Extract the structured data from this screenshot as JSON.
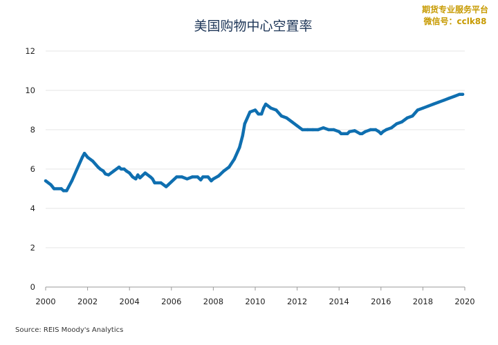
{
  "watermark": {
    "line1": "期货专业服务平台",
    "line2": "微信号：cclk88"
  },
  "source": "Source: REIS Moody's Analytics",
  "colors": {
    "line": "#0f6fb0"
  },
  "chart_data": {
    "type": "line",
    "title": "美国购物中心空置率",
    "xlabel": "",
    "ylabel": "",
    "xlim": [
      2000,
      2020
    ],
    "ylim": [
      0,
      12
    ],
    "xticks": [
      "2000",
      "2002",
      "2004",
      "2006",
      "2008",
      "2010",
      "2012",
      "2014",
      "2016",
      "2018",
      "2020"
    ],
    "yticks": [
      "0",
      "2",
      "4",
      "6",
      "8",
      "10",
      "12"
    ],
    "grid": true,
    "legend": "none",
    "series": [
      {
        "x": [
          2000.0,
          2000.25,
          2000.4,
          2000.75,
          2000.85,
          2001.0,
          2001.25,
          2001.5,
          2001.75,
          2001.85,
          2002.0,
          2002.25,
          2002.5,
          2002.6,
          2002.75,
          2002.85,
          2003.0,
          2003.25,
          2003.5,
          2003.6,
          2003.75,
          2003.85,
          2004.0,
          2004.15,
          2004.3,
          2004.4,
          2004.5,
          2004.75,
          2005.0,
          2005.1,
          2005.2,
          2005.5,
          2005.75,
          2005.85,
          2006.0,
          2006.25,
          2006.5,
          2006.75,
          2007.0,
          2007.25,
          2007.4,
          2007.5,
          2007.75,
          2007.9,
          2008.0,
          2008.25,
          2008.5,
          2008.75,
          2009.0,
          2009.25,
          2009.4,
          2009.5,
          2009.75,
          2010.0,
          2010.15,
          2010.3,
          2010.4,
          2010.5,
          2010.75,
          2011.0,
          2011.25,
          2011.5,
          2011.75,
          2012.0,
          2012.25,
          2012.5,
          2012.75,
          2013.0,
          2013.25,
          2013.5,
          2013.75,
          2014.0,
          2014.1,
          2014.25,
          2014.4,
          2014.5,
          2014.75,
          2015.0,
          2015.1,
          2015.25,
          2015.5,
          2015.75,
          2015.9,
          2016.0,
          2016.1,
          2016.25,
          2016.5,
          2016.75,
          2017.0,
          2017.25,
          2017.5,
          2017.75,
          2018.0,
          2018.25,
          2018.5,
          2018.75,
          2019.0,
          2019.25,
          2019.5,
          2019.75,
          2019.9
        ],
        "values": [
          5.4,
          5.2,
          5.0,
          5.0,
          4.9,
          4.9,
          5.4,
          6.0,
          6.6,
          6.8,
          6.6,
          6.4,
          6.1,
          6.0,
          5.9,
          5.75,
          5.7,
          5.9,
          6.1,
          6.0,
          6.0,
          5.9,
          5.8,
          5.6,
          5.5,
          5.7,
          5.55,
          5.8,
          5.6,
          5.5,
          5.3,
          5.3,
          5.1,
          5.2,
          5.35,
          5.6,
          5.6,
          5.5,
          5.6,
          5.6,
          5.45,
          5.6,
          5.6,
          5.4,
          5.5,
          5.65,
          5.9,
          6.1,
          6.5,
          7.1,
          7.7,
          8.3,
          8.9,
          9.0,
          8.8,
          8.8,
          9.1,
          9.3,
          9.1,
          9.0,
          8.7,
          8.6,
          8.4,
          8.2,
          8.0,
          8.0,
          8.0,
          8.0,
          8.1,
          8.0,
          8.0,
          7.9,
          7.8,
          7.8,
          7.8,
          7.9,
          7.95,
          7.8,
          7.8,
          7.9,
          8.0,
          8.0,
          7.9,
          7.8,
          7.9,
          8.0,
          8.1,
          8.3,
          8.4,
          8.6,
          8.7,
          9.0,
          9.1,
          9.2,
          9.3,
          9.4,
          9.5,
          9.6,
          9.7,
          9.8,
          9.8
        ]
      }
    ]
  }
}
